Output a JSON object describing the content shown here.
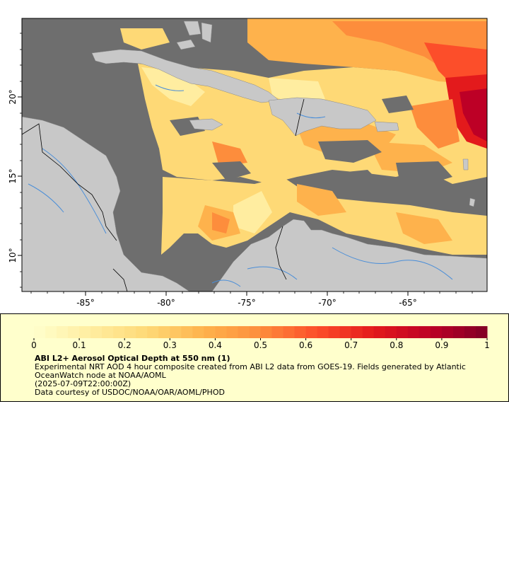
{
  "map": {
    "x_ticks": [
      "-85°",
      "-80°",
      "-75°",
      "-70°",
      "-65°"
    ],
    "y_ticks": [
      "20°",
      "15°",
      "10°"
    ],
    "colors": {
      "land": "#c8c8c8",
      "no_data": "#6e6e6e",
      "rivers": "#4a8ed8",
      "borders": "#000000"
    }
  },
  "legend": {
    "title": "ABI L2+ Aerosol Optical Depth at 550 nm (1)",
    "description": "Experimental NRT AOD 4 hour composite created from ABI L2 data from GOES-19. Fields generated by Atlantic OceanWatch node at NOAA/AOML",
    "timestamp": "(2025-07-09T22:00:00Z)",
    "credit": "Data courtesy of USDOC/NOAA/OAR/AOML/PHOD",
    "tick_labels": [
      "0",
      "0.1",
      "0.2",
      "0.3",
      "0.4",
      "0.5",
      "0.6",
      "0.7",
      "0.8",
      "0.9",
      "1"
    ],
    "colorscale": [
      "#ffffcc",
      "#ffeda0",
      "#fed976",
      "#feb24c",
      "#fd8d3c",
      "#fc4e2a",
      "#e31a1c",
      "#bd0026",
      "#800026"
    ]
  }
}
